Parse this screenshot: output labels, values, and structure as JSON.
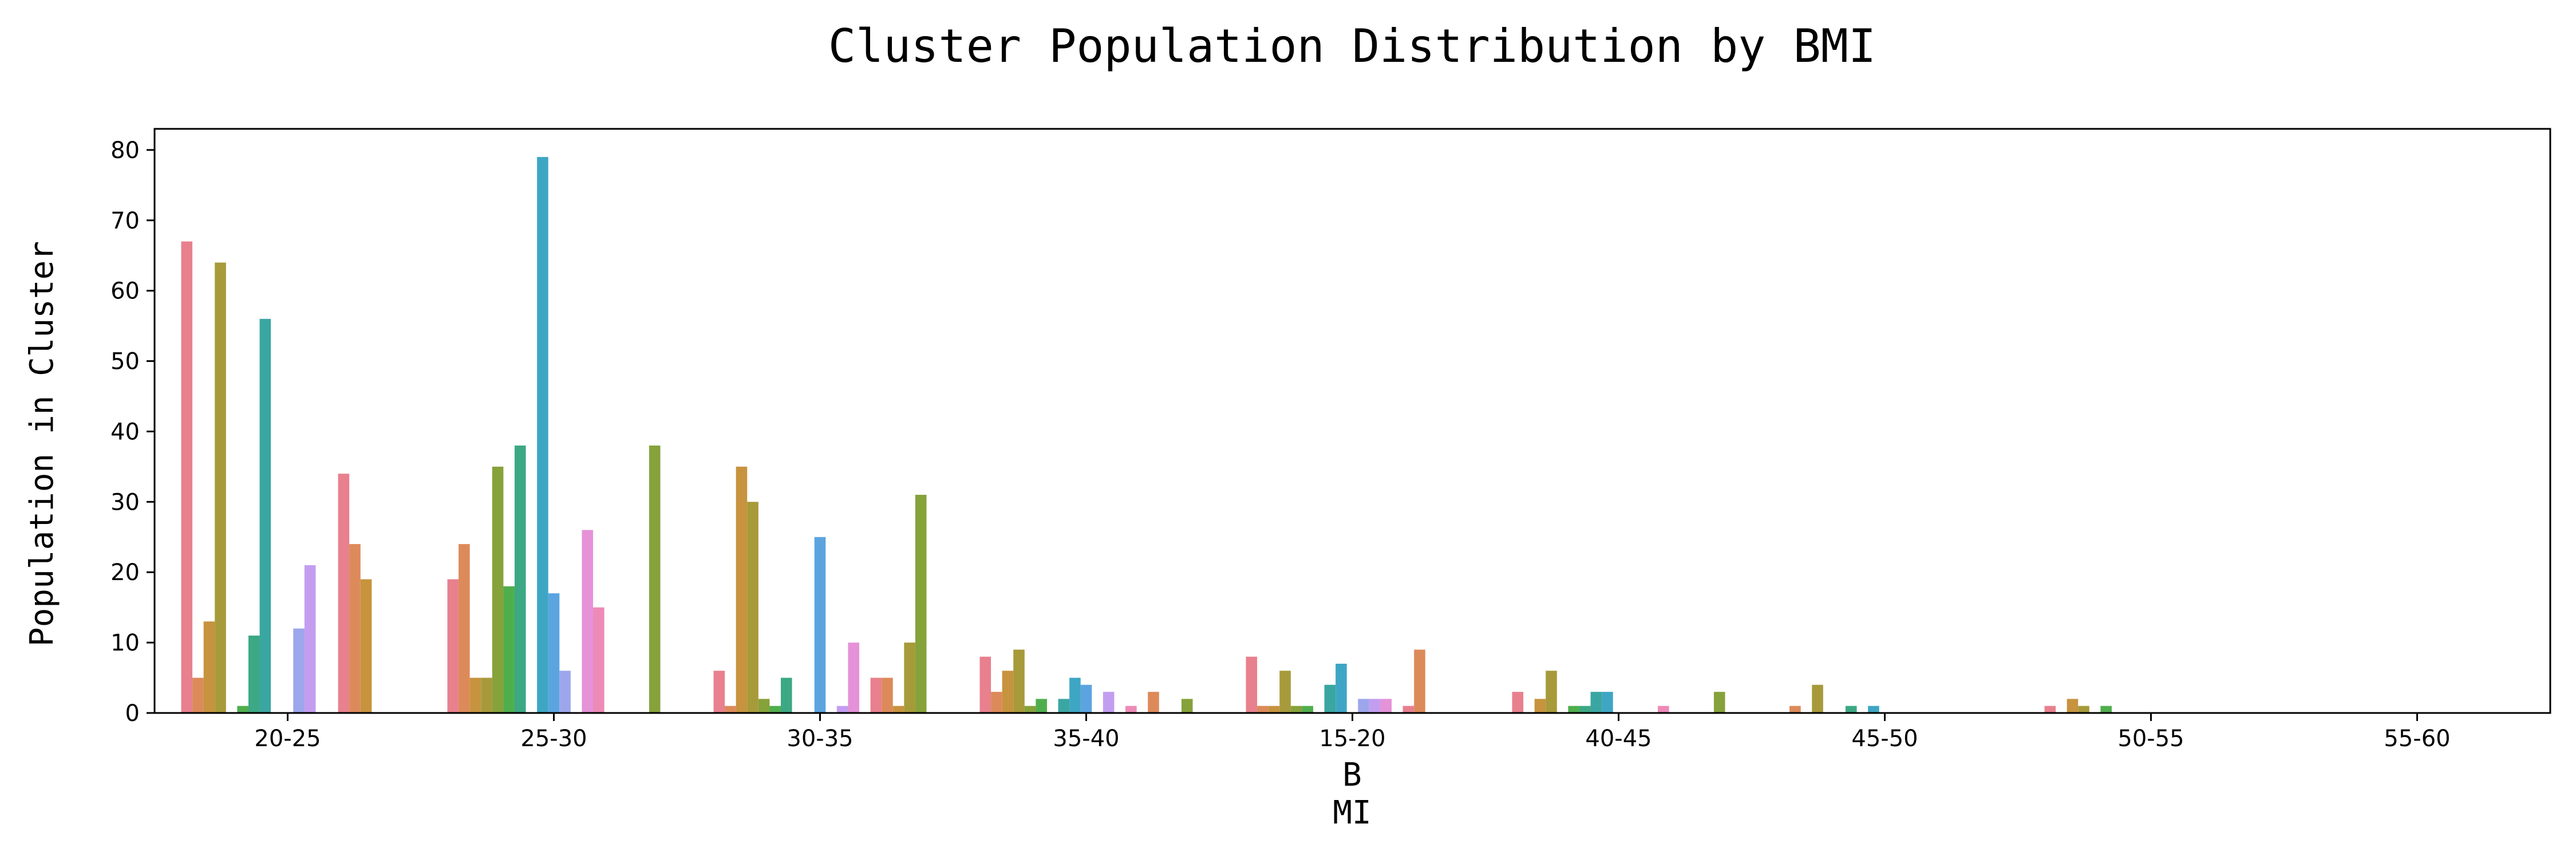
{
  "chart_data": {
    "type": "bar",
    "title": "Cluster Population Distribution by BMI",
    "xlabel_lines": [
      "B",
      "MI"
    ],
    "ylabel": "Population in Cluster",
    "categories": [
      "20-25",
      "25-30",
      "30-35",
      "35-40",
      "15-20",
      "40-45",
      "45-50",
      "50-55",
      "55-60"
    ],
    "ylim": [
      0,
      83
    ],
    "yticks": [
      0,
      10,
      20,
      30,
      40,
      50,
      60,
      70,
      80
    ],
    "grid": false,
    "legend": "none",
    "series_colors": [
      "#e8808e",
      "#dd8a5a",
      "#c7933e",
      "#a79a3a",
      "#86a23a",
      "#4fae4c",
      "#3ca884",
      "#3aa6a2",
      "#3ea6c4",
      "#5ba4e0",
      "#9da6ec",
      "#c39ef0",
      "#e592d8",
      "#ed8ab6"
    ],
    "series": [
      {
        "values": [
          67,
          19,
          6,
          8,
          8,
          3,
          0,
          1,
          0
        ]
      },
      {
        "values": [
          5,
          24,
          1,
          3,
          1,
          0,
          1,
          0,
          0
        ]
      },
      {
        "values": [
          13,
          5,
          35,
          6,
          1,
          2,
          0,
          2,
          0
        ]
      },
      {
        "values": [
          64,
          5,
          30,
          9,
          6,
          6,
          4,
          1,
          0
        ]
      },
      {
        "values": [
          0,
          35,
          2,
          1,
          1,
          0,
          0,
          0,
          0
        ]
      },
      {
        "values": [
          1,
          18,
          1,
          2,
          1,
          1,
          0,
          1,
          0
        ]
      },
      {
        "values": [
          11,
          38,
          5,
          0,
          0,
          1,
          1,
          0,
          0
        ]
      },
      {
        "values": [
          56,
          0,
          0,
          2,
          4,
          3,
          0,
          0,
          0
        ]
      },
      {
        "values": [
          0,
          79,
          0,
          5,
          7,
          3,
          1,
          0,
          0
        ]
      },
      {
        "values": [
          0,
          17,
          25,
          4,
          0,
          0,
          0,
          0,
          0
        ]
      },
      {
        "values": [
          12,
          6,
          0,
          0,
          2,
          0,
          0,
          0,
          0
        ]
      },
      {
        "values": [
          21,
          0,
          1,
          3,
          2,
          0,
          0,
          0,
          0
        ]
      },
      {
        "values": [
          0,
          26,
          10,
          0,
          2,
          0,
          0,
          0,
          0
        ]
      },
      {
        "values": [
          0,
          15,
          0,
          1,
          0,
          1,
          0,
          0,
          0
        ]
      },
      {
        "values": [
          34,
          0,
          5,
          0,
          1,
          0,
          0,
          0,
          0
        ]
      },
      {
        "values": [
          24,
          0,
          5,
          3,
          9,
          0,
          0,
          0,
          0
        ]
      },
      {
        "values": [
          19,
          0,
          1,
          0,
          0,
          0,
          0,
          0,
          0
        ]
      },
      {
        "values": [
          0,
          0,
          10,
          0,
          0,
          0,
          0,
          0,
          0
        ]
      },
      {
        "values": [
          0,
          38,
          31,
          2,
          0,
          3,
          0,
          0,
          0
        ]
      }
    ]
  }
}
